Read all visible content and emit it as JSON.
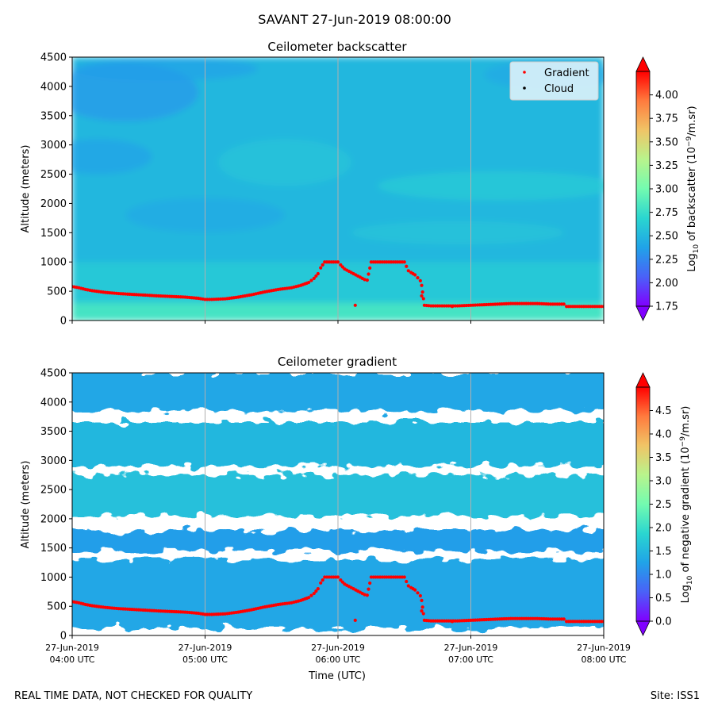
{
  "figure": {
    "suptitle": "SAVANT 27-Jun-2019 08:00:00",
    "footer_left": "REAL TIME DATA, NOT CHECKED FOR QUALITY",
    "footer_right": "Site: ISS1"
  },
  "colors": {
    "gradient_marker": "#ff0000",
    "cloud_marker": "#000000",
    "gridline": "#b0b0b0",
    "colormap": [
      "#8000ff",
      "#4a61f8",
      "#20a3e8",
      "#2ad6d0",
      "#73fbb0",
      "#b8f48c",
      "#f0c466",
      "#ff7b3e",
      "#ff0000"
    ]
  },
  "chart_data": [
    {
      "type": "heatmap",
      "title": "Ceilometer backscatter",
      "xlabel": "",
      "ylabel": "Altitude (meters)",
      "ylim": [
        0,
        4500
      ],
      "yticks": [
        "0",
        "500",
        "1000",
        "1500",
        "2000",
        "2500",
        "3000",
        "3500",
        "4000",
        "4500"
      ],
      "xlim_hours_utc": [
        4.0,
        8.0
      ],
      "xticks_hours_utc": [
        4,
        5,
        6,
        7,
        8
      ],
      "colorbar": {
        "label": "Log10 of backscatter (10^-9/m.sr)",
        "range": [
          1.75,
          4.25
        ],
        "ticks": [
          "1.75",
          "2.00",
          "2.25",
          "2.50",
          "2.75",
          "3.00",
          "3.25",
          "3.50",
          "3.75",
          "4.00"
        ]
      },
      "legend": {
        "placement": "top-right",
        "entries": [
          {
            "label": "Gradient",
            "color": "#ff0000"
          },
          {
            "label": "Cloud",
            "color": "#000000"
          }
        ]
      },
      "value_estimates": {
        "near_surface_0_300m": 2.8,
        "boundary_layer_300_1000m": 2.6,
        "free_troposphere_1000_4500m": 2.5
      }
    },
    {
      "type": "heatmap",
      "title": "Ceilometer gradient",
      "xlabel": "Time (UTC)",
      "ylabel": "Altitude (meters)",
      "ylim": [
        0,
        4500
      ],
      "yticks": [
        "0",
        "500",
        "1000",
        "1500",
        "2000",
        "2500",
        "3000",
        "3500",
        "4000",
        "4500"
      ],
      "xlim_hours_utc": [
        4.0,
        8.0
      ],
      "xticks_hours_utc": [
        4,
        5,
        6,
        7,
        8
      ],
      "xtick_labels": [
        {
          "date": "27-Jun-2019",
          "time": "04:00 UTC"
        },
        {
          "date": "27-Jun-2019",
          "time": "05:00 UTC"
        },
        {
          "date": "27-Jun-2019",
          "time": "06:00 UTC"
        },
        {
          "date": "27-Jun-2019",
          "time": "07:00 UTC"
        },
        {
          "date": "27-Jun-2019",
          "time": "08:00 UTC"
        }
      ],
      "colorbar": {
        "label": "Log10 of negative gradient (10^-9/m.sr)",
        "range": [
          0.0,
          5.0
        ],
        "ticks": [
          "0.0",
          "0.5",
          "1.0",
          "1.5",
          "2.0",
          "2.5",
          "3.0",
          "3.5",
          "4.0",
          "4.5"
        ]
      },
      "gradient_layer_bands_m": [
        {
          "from": 130,
          "to": 1300,
          "value": 1.3
        },
        {
          "from": 1450,
          "to": 1800,
          "value": 1.2
        },
        {
          "from": 2050,
          "to": 2750,
          "value": 1.6
        },
        {
          "from": 2900,
          "to": 3650,
          "value": 1.5
        },
        {
          "from": 3850,
          "to": 4500,
          "value": 1.3
        }
      ]
    }
  ],
  "series": {
    "gradient_height": {
      "name": "Gradient",
      "time_hours_utc": [
        4.0,
        4.05,
        4.1,
        4.15,
        4.25,
        4.35,
        4.5,
        4.65,
        4.75,
        4.85,
        4.95,
        5.0,
        5.05,
        5.15,
        5.25,
        5.35,
        5.45,
        5.55,
        5.65,
        5.72,
        5.78,
        5.82,
        5.85,
        5.87,
        5.9,
        5.95,
        6.0,
        6.02,
        6.05,
        6.1,
        6.15,
        6.2,
        6.22,
        6.25,
        6.3,
        6.4,
        6.5,
        6.53,
        6.55,
        6.58,
        6.6,
        6.62,
        6.63,
        6.65,
        6.7,
        6.8,
        6.9,
        7.0,
        7.1,
        7.2,
        7.3,
        7.4,
        7.5,
        7.6,
        7.7,
        7.72,
        7.8,
        7.9,
        8.0
      ],
      "altitude_m": [
        580,
        560,
        530,
        510,
        480,
        460,
        440,
        420,
        410,
        400,
        380,
        360,
        360,
        370,
        400,
        440,
        490,
        530,
        560,
        600,
        650,
        720,
        800,
        900,
        1000,
        1000,
        1000,
        950,
        880,
        820,
        760,
        700,
        690,
        1000,
        1000,
        1000,
        1000,
        850,
        820,
        780,
        730,
        680,
        600,
        260,
        250,
        250,
        250,
        260,
        270,
        280,
        290,
        290,
        290,
        280,
        280,
        240,
        240,
        240,
        240
      ]
    },
    "gradient_outliers": {
      "time_hours_utc": [
        6.13,
        6.63,
        6.86
      ],
      "altitude_m": [
        260,
        420,
        240
      ]
    },
    "cloud_base": {
      "name": "Cloud",
      "time_hours_utc": [],
      "altitude_m": []
    }
  }
}
